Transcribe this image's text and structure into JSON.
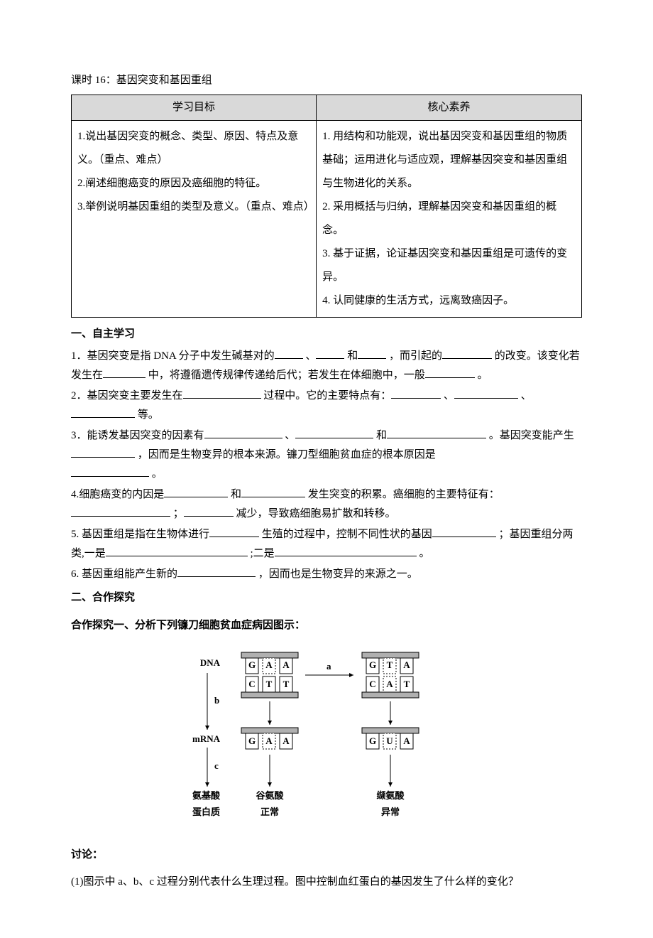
{
  "lesson_title": "课时 16：基因突变和基因重组",
  "table": {
    "header_left": "学习目标",
    "header_right": "核心素养",
    "left_cell": "1.说出基因突变的概念、类型、原因、特点及意义。（重点、难点）\n2.阐述细胞癌变的原因及癌细胞的特征。\n3.举例说明基因重组的类型及意义。（重点、难点）",
    "right_cell": "1. 用结构和功能观，说出基因突变和基因重组的物质基础；运用进化与适应观，理解基因突变和基因重组与生物进化的关系。\n2. 采用概括与归纳，理解基因突变和基因重组的概念。\n3. 基于证据，论证基因突变和基因重组是可遗传的变异。\n4. 认同健康的生活方式，远离致癌因子。"
  },
  "section1_hdr": "一、自主学习",
  "q1a": "1．基因突变是指 DNA 分子中发生碱基对的",
  "q1b": "、",
  "q1c": "和",
  "q1d": "，而引起的",
  "q1e": "的改变。该变化若发生在",
  "q1f": "中，将遵循遗传规律传递给后代；若发生在体细胞中，一般",
  "q1g": "。",
  "q2a": "2．基因突变主要发生在",
  "q2b": "过程中。它的主要特点有：",
  "q2c": "、",
  "q2d": "、",
  "q2e": "等。",
  "q3a": "3．能诱发基因突变的因素有",
  "q3b": "、",
  "q3c": "和",
  "q3d": "。基因突变能产生",
  "q3e": "，因而是生物变异的根本来源。镰刀型细胞贫血症的根本原因是",
  "q3f": "。",
  "q4a": "4.细胞癌变的内因是",
  "q4b": "和",
  "q4c": "发生突变的积累。癌细胞的主要特征有：",
  "q4d": "；",
  "q4e": "减少，导致癌细胞易扩散和转移。",
  "q5a": "5. 基因重组是指在生物体进行",
  "q5b": "生殖的过程中，控制不同性状的基因",
  "q5c": "；基因重组分两类,一是",
  "q5d": ";二是",
  "q5e": "。",
  "q6a": "6. 基因重组能产生新的",
  "q6b": "，因而也是生物变异的来源之一。",
  "section2_hdr": "二、合作探究",
  "section2_sub": "合作探究一、分析下列镰刀细胞贫血症病因图示：",
  "diagram": {
    "labels": {
      "dna": "DNA",
      "mrna": "mRNA",
      "aa": "氨基酸",
      "protein": "蛋白质",
      "normal": "正常",
      "abnormal": "异常",
      "glu": "谷氨酸",
      "val": "缬氨酸",
      "a": "a",
      "b": "b",
      "c": "c"
    },
    "seq": {
      "dna_top_left": [
        "G",
        "A",
        "A"
      ],
      "dna_top_right": [
        "G",
        "T",
        "A"
      ],
      "dna_bot_left": [
        "C",
        "T",
        "T"
      ],
      "dna_bot_right": [
        "C",
        "A",
        "T"
      ],
      "mrna_left": [
        "G",
        "A",
        "A"
      ],
      "mrna_right": [
        "G",
        "U",
        "A"
      ]
    },
    "colors": {
      "stroke": "#000000",
      "fill": "#ffffff",
      "gray": "#b0b0b0",
      "text": "#000000"
    }
  },
  "discuss_hdr": "讨论：",
  "discuss_q1": "(1)图示中 a、b、c 过程分别代表什么生理过程。图中控制血红蛋白的基因发生了什么样的变化？"
}
